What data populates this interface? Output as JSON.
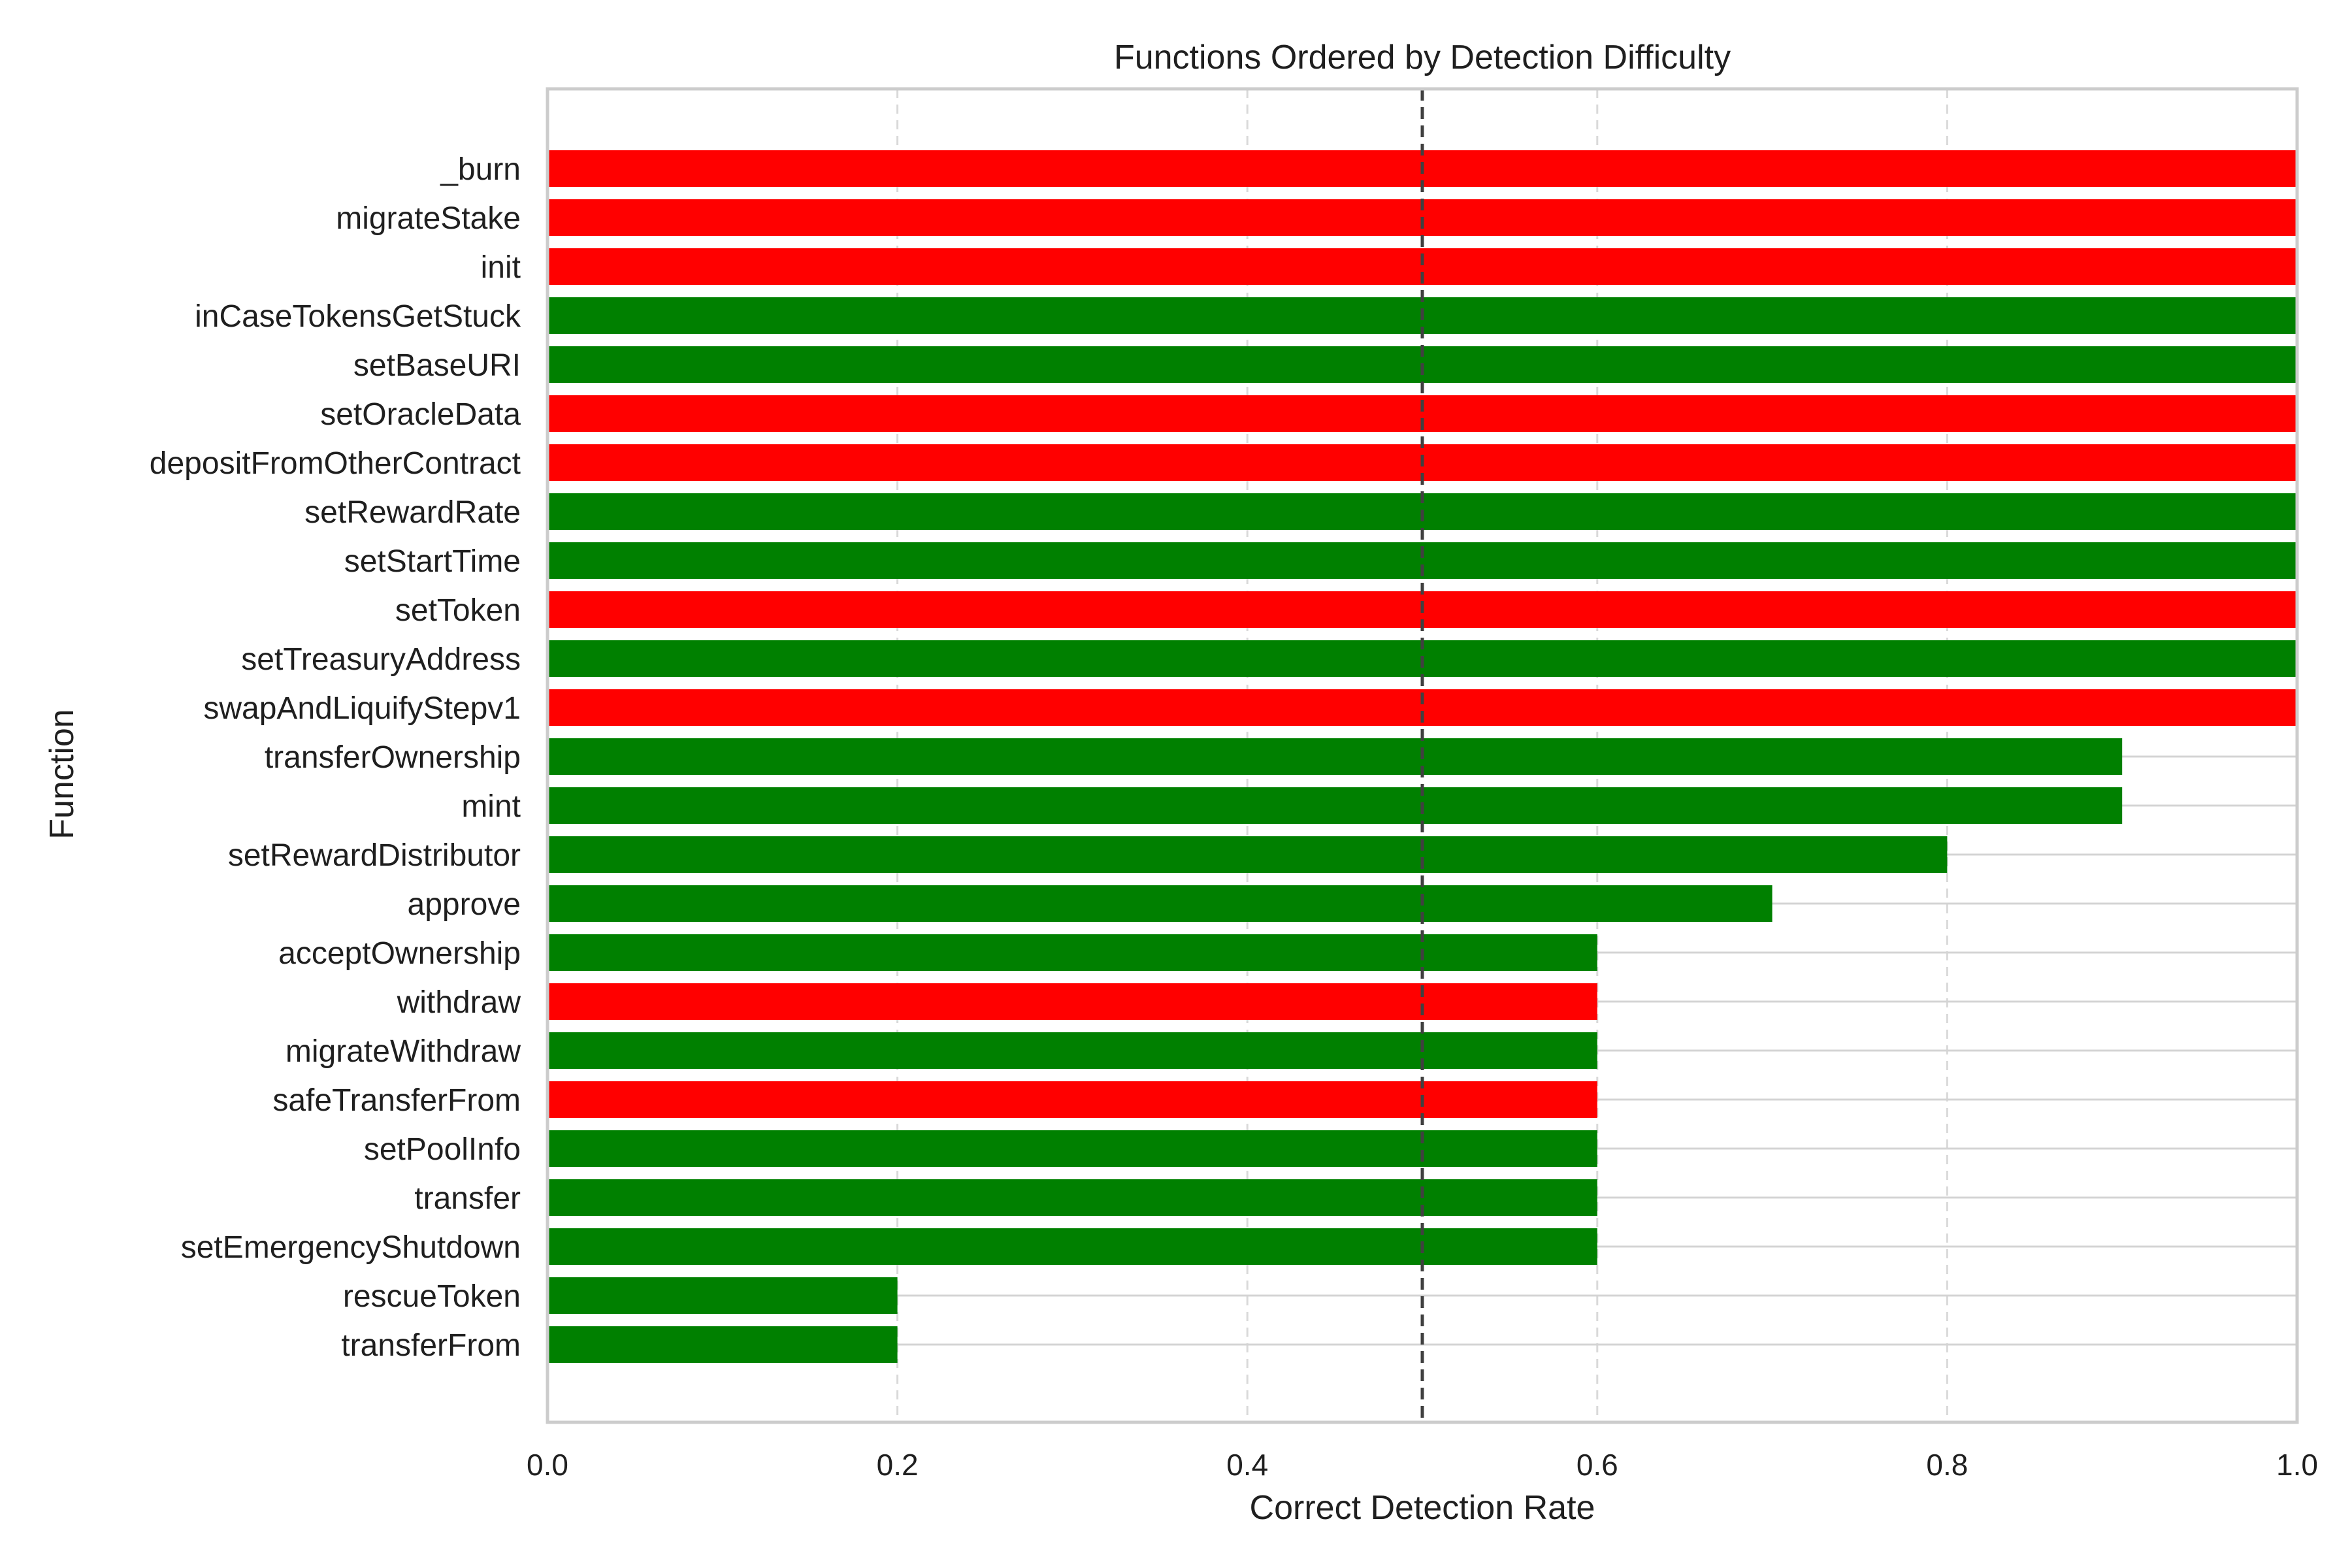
{
  "chart_data": {
    "type": "bar",
    "orientation": "horizontal",
    "title": "Functions Ordered by Detection Difficulty",
    "xlabel": "Correct Detection Rate",
    "ylabel": "Function",
    "xlim": [
      0.0,
      1.0
    ],
    "xticks": [
      "0.0",
      "0.2",
      "0.4",
      "0.6",
      "0.8",
      "1.0"
    ],
    "grid": true,
    "reference_line": {
      "x": 0.5,
      "style": "dashed",
      "color": "#404040"
    },
    "colors": {
      "red": "#ff0000",
      "green": "#008000"
    },
    "categories": [
      "_burn",
      "migrateStake",
      "init",
      "inCaseTokensGetStuck",
      "setBaseURI",
      "setOracleData",
      "depositFromOtherContract",
      "setRewardRate",
      "setStartTime",
      "setToken",
      "setTreasuryAddress",
      "swapAndLiquifyStepv1",
      "transferOwnership",
      "mint",
      "setRewardDistributor",
      "approve",
      "acceptOwnership",
      "withdraw",
      "migrateWithdraw",
      "safeTransferFrom",
      "setPoolInfo",
      "transfer",
      "setEmergencyShutdown",
      "rescueToken",
      "transferFrom"
    ],
    "values": [
      1.0,
      1.0,
      1.0,
      1.0,
      1.0,
      1.0,
      1.0,
      1.0,
      1.0,
      1.0,
      1.0,
      1.0,
      0.9,
      0.9,
      0.8,
      0.7,
      0.6,
      0.6,
      0.6,
      0.6,
      0.6,
      0.6,
      0.6,
      0.2,
      0.2
    ],
    "bar_colors": [
      "red",
      "red",
      "red",
      "green",
      "green",
      "red",
      "red",
      "green",
      "green",
      "red",
      "green",
      "red",
      "green",
      "green",
      "green",
      "green",
      "green",
      "red",
      "green",
      "red",
      "green",
      "green",
      "green",
      "green",
      "green"
    ]
  }
}
